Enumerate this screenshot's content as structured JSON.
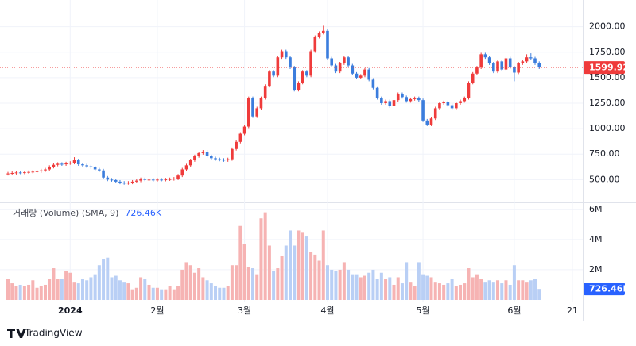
{
  "branding": "TradingView",
  "chart_data": {
    "type": "candlestick",
    "categories": [
      null,
      null,
      null,
      null,
      null,
      null,
      null,
      null,
      null,
      null,
      null,
      null,
      null,
      null,
      null,
      "2024",
      null,
      null,
      null,
      null,
      null,
      null,
      null,
      null,
      null,
      null,
      null,
      null,
      null,
      null,
      null,
      null,
      null,
      null,
      null,
      null,
      "2월",
      null,
      null,
      null,
      null,
      null,
      null,
      null,
      null,
      null,
      null,
      null,
      null,
      null,
      null,
      null,
      null,
      null,
      null,
      null,
      null,
      "3월",
      null,
      null,
      null,
      null,
      null,
      null,
      null,
      null,
      null,
      null,
      null,
      null,
      null,
      null,
      null,
      null,
      null,
      null,
      null,
      "4월",
      null,
      null,
      null,
      null,
      null,
      null,
      null,
      null,
      null,
      null,
      null,
      null,
      null,
      null,
      null,
      null,
      null,
      null,
      null,
      null,
      null,
      null,
      "5월",
      null,
      null,
      null,
      null,
      null,
      null,
      null,
      null,
      null,
      null,
      null,
      null,
      null,
      null,
      null,
      null,
      null,
      null,
      null,
      null,
      null,
      "6월",
      null,
      null,
      null,
      null,
      null,
      null,
      null,
      null,
      null,
      null,
      null,
      null,
      null,
      "21"
    ],
    "ylim": [
      300,
      2200
    ],
    "yticks": [
      {
        "value": 500,
        "label": "500.00"
      },
      {
        "value": 750,
        "label": "750.00"
      },
      {
        "value": 1000,
        "label": "1000.00"
      },
      {
        "value": 1250,
        "label": "1250.00"
      },
      {
        "value": 1500,
        "label": "1500.00"
      },
      {
        "value": 1750,
        "label": "1750.00"
      },
      {
        "value": 2000,
        "label": "2000.00"
      }
    ],
    "y2lim": [
      0,
      6200000
    ],
    "y2ticks": [
      {
        "value": 2000000,
        "label": "2M"
      },
      {
        "value": 4000000,
        "label": "4M"
      },
      {
        "value": 6000000,
        "label": "6M"
      }
    ],
    "grid": true,
    "series": [
      {
        "name": null,
        "up_color": "#ef3b3b",
        "down_color": "#3b7ddd",
        "last": 1599.92,
        "values": [
          [
            555,
            575,
            540,
            560
          ],
          [
            560,
            580,
            545,
            565
          ],
          [
            565,
            585,
            550,
            570
          ],
          [
            570,
            585,
            553,
            568
          ],
          [
            568,
            587,
            553,
            572
          ],
          [
            572,
            590,
            557,
            575
          ],
          [
            575,
            593,
            560,
            578
          ],
          [
            578,
            597,
            563,
            582
          ],
          [
            582,
            605,
            567,
            590
          ],
          [
            590,
            615,
            575,
            600
          ],
          [
            600,
            640,
            585,
            625
          ],
          [
            625,
            660,
            610,
            645
          ],
          [
            645,
            670,
            630,
            655
          ],
          [
            655,
            670,
            635,
            650
          ],
          [
            650,
            675,
            635,
            660
          ],
          [
            660,
            680,
            645,
            665
          ],
          [
            665,
            720,
            650,
            690
          ],
          [
            690,
            705,
            635,
            650
          ],
          [
            650,
            665,
            625,
            640
          ],
          [
            640,
            655,
            615,
            630
          ],
          [
            630,
            645,
            605,
            620
          ],
          [
            620,
            635,
            585,
            600
          ],
          [
            600,
            615,
            575,
            590
          ],
          [
            590,
            605,
            505,
            520
          ],
          [
            520,
            535,
            485,
            500
          ],
          [
            500,
            515,
            480,
            495
          ],
          [
            495,
            510,
            465,
            480
          ],
          [
            480,
            495,
            455,
            470
          ],
          [
            470,
            485,
            450,
            465
          ],
          [
            465,
            485,
            450,
            470
          ],
          [
            470,
            495,
            455,
            480
          ],
          [
            480,
            505,
            465,
            490
          ],
          [
            490,
            520,
            475,
            505
          ],
          [
            505,
            520,
            485,
            500
          ],
          [
            500,
            515,
            485,
            500
          ],
          [
            500,
            515,
            480,
            495
          ],
          [
            495,
            515,
            480,
            500
          ],
          [
            500,
            515,
            483,
            498
          ],
          [
            498,
            517,
            483,
            502
          ],
          [
            502,
            520,
            487,
            505
          ],
          [
            505,
            525,
            490,
            510
          ],
          [
            510,
            555,
            495,
            540
          ],
          [
            540,
            615,
            525,
            600
          ],
          [
            600,
            655,
            585,
            640
          ],
          [
            640,
            705,
            625,
            690
          ],
          [
            690,
            745,
            675,
            730
          ],
          [
            730,
            775,
            715,
            760
          ],
          [
            760,
            790,
            745,
            775
          ],
          [
            775,
            790,
            715,
            730
          ],
          [
            730,
            745,
            695,
            710
          ],
          [
            710,
            725,
            685,
            700
          ],
          [
            700,
            715,
            680,
            695
          ],
          [
            695,
            710,
            675,
            690
          ],
          [
            690,
            715,
            675,
            700
          ],
          [
            700,
            815,
            685,
            800
          ],
          [
            800,
            885,
            785,
            870
          ],
          [
            870,
            965,
            855,
            950
          ],
          [
            950,
            1035,
            935,
            1020
          ],
          [
            1020,
            1315,
            1005,
            1300
          ],
          [
            1300,
            1315,
            1105,
            1120
          ],
          [
            1120,
            1215,
            1105,
            1200
          ],
          [
            1200,
            1315,
            1185,
            1300
          ],
          [
            1300,
            1435,
            1285,
            1420
          ],
          [
            1420,
            1575,
            1405,
            1560
          ],
          [
            1560,
            1575,
            1505,
            1520
          ],
          [
            1520,
            1715,
            1505,
            1700
          ],
          [
            1700,
            1775,
            1685,
            1760
          ],
          [
            1760,
            1775,
            1685,
            1700
          ],
          [
            1700,
            1715,
            1585,
            1600
          ],
          [
            1600,
            1615,
            1365,
            1380
          ],
          [
            1380,
            1465,
            1365,
            1450
          ],
          [
            1450,
            1575,
            1435,
            1560
          ],
          [
            1560,
            1575,
            1505,
            1520
          ],
          [
            1520,
            1775,
            1505,
            1760
          ],
          [
            1760,
            1915,
            1745,
            1900
          ],
          [
            1900,
            1955,
            1885,
            1940
          ],
          [
            1940,
            2010,
            1925,
            1960
          ],
          [
            1960,
            1975,
            1675,
            1690
          ],
          [
            1690,
            1705,
            1605,
            1620
          ],
          [
            1620,
            1635,
            1545,
            1560
          ],
          [
            1560,
            1655,
            1545,
            1640
          ],
          [
            1640,
            1715,
            1625,
            1700
          ],
          [
            1700,
            1715,
            1605,
            1620
          ],
          [
            1620,
            1635,
            1525,
            1540
          ],
          [
            1540,
            1555,
            1485,
            1500
          ],
          [
            1500,
            1535,
            1485,
            1520
          ],
          [
            1520,
            1595,
            1505,
            1580
          ],
          [
            1580,
            1595,
            1465,
            1480
          ],
          [
            1480,
            1495,
            1385,
            1400
          ],
          [
            1400,
            1415,
            1285,
            1300
          ],
          [
            1300,
            1315,
            1235,
            1250
          ],
          [
            1250,
            1285,
            1235,
            1270
          ],
          [
            1270,
            1285,
            1205,
            1220
          ],
          [
            1220,
            1295,
            1205,
            1280
          ],
          [
            1280,
            1355,
            1265,
            1340
          ],
          [
            1340,
            1355,
            1295,
            1310
          ],
          [
            1310,
            1325,
            1255,
            1270
          ],
          [
            1270,
            1305,
            1255,
            1290
          ],
          [
            1290,
            1315,
            1275,
            1300
          ],
          [
            1300,
            1315,
            1265,
            1280
          ],
          [
            1280,
            1295,
            1065,
            1080
          ],
          [
            1080,
            1095,
            1025,
            1040
          ],
          [
            1040,
            1115,
            1025,
            1100
          ],
          [
            1100,
            1215,
            1085,
            1200
          ],
          [
            1200,
            1265,
            1185,
            1250
          ],
          [
            1250,
            1275,
            1235,
            1260
          ],
          [
            1260,
            1275,
            1215,
            1230
          ],
          [
            1230,
            1245,
            1185,
            1200
          ],
          [
            1200,
            1265,
            1185,
            1250
          ],
          [
            1250,
            1285,
            1235,
            1270
          ],
          [
            1270,
            1315,
            1255,
            1300
          ],
          [
            1300,
            1465,
            1285,
            1450
          ],
          [
            1450,
            1555,
            1435,
            1540
          ],
          [
            1540,
            1615,
            1525,
            1600
          ],
          [
            1600,
            1745,
            1585,
            1730
          ],
          [
            1730,
            1745,
            1685,
            1700
          ],
          [
            1700,
            1715,
            1625,
            1640
          ],
          [
            1640,
            1655,
            1545,
            1560
          ],
          [
            1560,
            1675,
            1545,
            1660
          ],
          [
            1660,
            1675,
            1565,
            1580
          ],
          [
            1580,
            1705,
            1565,
            1690
          ],
          [
            1690,
            1705,
            1585,
            1600
          ],
          [
            1600,
            1615,
            1465,
            1550
          ],
          [
            1550,
            1655,
            1535,
            1640
          ],
          [
            1640,
            1675,
            1625,
            1660
          ],
          [
            1660,
            1730,
            1645,
            1700
          ],
          [
            1700,
            1740,
            1675,
            1690
          ],
          [
            1690,
            1705,
            1625,
            1640
          ],
          [
            1640,
            1660,
            1585,
            1599.92
          ],
          null,
          null,
          null,
          null,
          null,
          null,
          null,
          null
        ]
      },
      {
        "name": "거래량 (Volume) (SMA, 9)",
        "axis": "y2",
        "up_color": "#f6b3b3",
        "down_color": "#b9cff5",
        "label_color": "#2962ff",
        "last": {
          "value": 726460,
          "label": "726.46K"
        },
        "values": [
          1400000,
          1100000,
          900000,
          1000000,
          900000,
          1000000,
          1300000,
          800000,
          900000,
          1000000,
          1400000,
          2100000,
          1400000,
          1400000,
          1900000,
          1800000,
          1200000,
          1100000,
          1400000,
          1300000,
          1500000,
          1700000,
          2300000,
          2700000,
          2800000,
          1500000,
          1600000,
          1300000,
          1200000,
          1100000,
          700000,
          800000,
          1500000,
          1400000,
          1000000,
          800000,
          800000,
          700000,
          700000,
          900000,
          700000,
          900000,
          2000000,
          2500000,
          2300000,
          1800000,
          2100000,
          1500000,
          1300000,
          1100000,
          900000,
          800000,
          800000,
          900000,
          2300000,
          2300000,
          4900000,
          3700000,
          2200000,
          2100000,
          1700000,
          5400000,
          5800000,
          3600000,
          1900000,
          2100000,
          2900000,
          3600000,
          4600000,
          3600000,
          4600000,
          4500000,
          4200000,
          3200000,
          3000000,
          2600000,
          4600000,
          2300000,
          2000000,
          1900000,
          2000000,
          2500000,
          2000000,
          1700000,
          1700000,
          1500000,
          1600000,
          1800000,
          2000000,
          1400000,
          1800000,
          1400000,
          1500000,
          1000000,
          1500000,
          1100000,
          2500000,
          1200000,
          900000,
          2500000,
          1700000,
          1600000,
          1500000,
          1200000,
          1100000,
          1000000,
          1100000,
          1400000,
          900000,
          1000000,
          1100000,
          2100000,
          1500000,
          1700000,
          1400000,
          1200000,
          1300000,
          1200000,
          1300000,
          1100000,
          1300000,
          1000000,
          2300000,
          1300000,
          1300000,
          1200000,
          1300000,
          1400000,
          726460,
          null,
          null,
          null,
          null,
          null,
          null,
          null,
          null
        ]
      }
    ]
  }
}
